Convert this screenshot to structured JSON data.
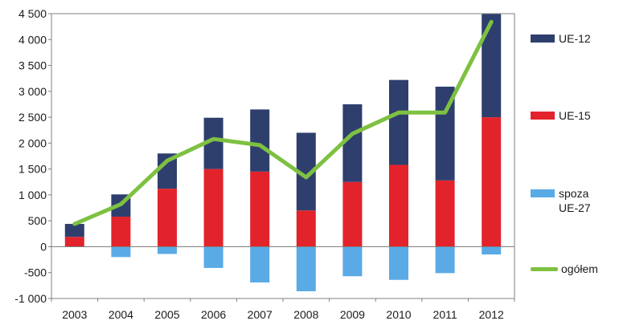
{
  "chart_data": {
    "type": "bar",
    "stacked": true,
    "categories": [
      "2003",
      "2004",
      "2005",
      "2006",
      "2007",
      "2008",
      "2009",
      "2010",
      "2011",
      "2012"
    ],
    "series": [
      {
        "name": "UE-12",
        "color": "#2e3f6e",
        "values": [
          250,
          430,
          680,
          990,
          1200,
          1500,
          1500,
          1640,
          1810,
          2000
        ]
      },
      {
        "name": "UE-15",
        "color": "#e3232b",
        "values": [
          190,
          580,
          1120,
          1500,
          1450,
          700,
          1250,
          1580,
          1280,
          2500
        ]
      },
      {
        "name": "spoza\nUE-27",
        "color": "#5aaae6",
        "values": [
          0,
          -200,
          -140,
          -410,
          -690,
          -860,
          -570,
          -640,
          -510,
          -150
        ]
      }
    ],
    "line_series": {
      "name": "ogółem",
      "color": "#7ec142",
      "values": [
        440,
        820,
        1660,
        2080,
        1960,
        1340,
        2180,
        2590,
        2590,
        4340
      ]
    },
    "y_ticks": [
      "4 500",
      "4 000",
      "3 500",
      "3 000",
      "2 500",
      "2 000",
      "1 500",
      "1 000",
      "500",
      "0",
      "-500",
      "-1 000"
    ],
    "ylim": [
      -1000,
      4500
    ],
    "grid": false,
    "legend_position": "right"
  }
}
